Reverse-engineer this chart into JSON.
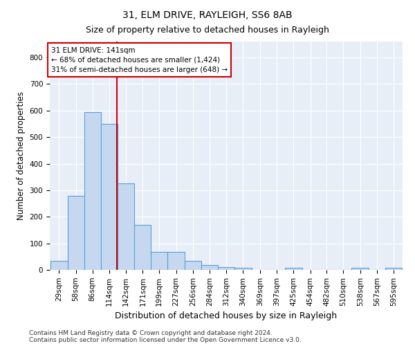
{
  "title": "31, ELM DRIVE, RAYLEIGH, SS6 8AB",
  "subtitle": "Size of property relative to detached houses in Rayleigh",
  "xlabel": "Distribution of detached houses by size in Rayleigh",
  "ylabel": "Number of detached properties",
  "footnote1": "Contains HM Land Registry data © Crown copyright and database right 2024.",
  "footnote2": "Contains public sector information licensed under the Open Government Licence v3.0.",
  "bar_edges": [
    29,
    58,
    86,
    114,
    142,
    171,
    199,
    227,
    256,
    284,
    312,
    340,
    369,
    397,
    425,
    454,
    482,
    510,
    538,
    567,
    595
  ],
  "bar_values": [
    35,
    280,
    595,
    550,
    325,
    170,
    68,
    68,
    35,
    18,
    11,
    8,
    0,
    0,
    8,
    0,
    0,
    0,
    8,
    0,
    8
  ],
  "bar_color": "#c5d8f0",
  "bar_edge_color": "#5a9fd4",
  "bar_linewidth": 0.8,
  "property_line_x": 141,
  "property_line_color": "#cc0000",
  "annotation_line1": "31 ELM DRIVE: 141sqm",
  "annotation_line2": "← 68% of detached houses are smaller (1,424)",
  "annotation_line3": "31% of semi-detached houses are larger (648) →",
  "annotation_box_color": "#ffffff",
  "annotation_box_edge": "#cc0000",
  "ylim": [
    0,
    860
  ],
  "yticks": [
    0,
    100,
    200,
    300,
    400,
    500,
    600,
    700,
    800
  ],
  "bg_color": "#e8eef8",
  "title_fontsize": 10,
  "subtitle_fontsize": 9,
  "tick_fontsize": 7.5,
  "ylabel_fontsize": 8.5,
  "xlabel_fontsize": 9,
  "annotation_fontsize": 7.5,
  "footnote_fontsize": 6.5
}
